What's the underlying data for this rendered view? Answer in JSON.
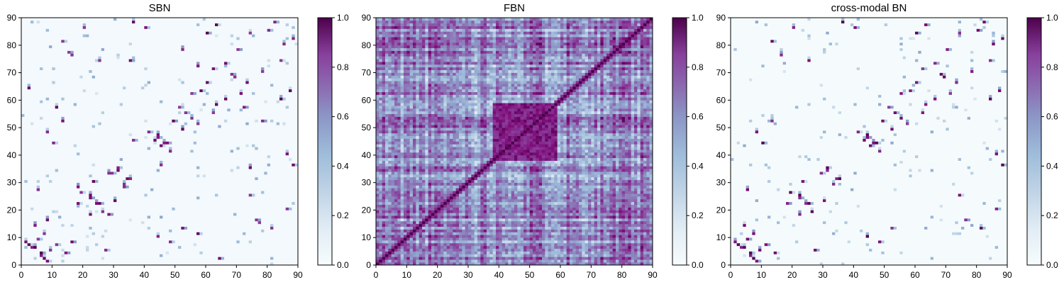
{
  "figure": {
    "panels": [
      {
        "title": "SBN",
        "key": "sbn"
      },
      {
        "title": "FBN",
        "key": "fbn"
      },
      {
        "title": "cross-modal BN",
        "key": "cross"
      }
    ]
  },
  "chart_data": [
    {
      "type": "heatmap",
      "title": "SBN",
      "xlabel": "",
      "ylabel": "",
      "x_ticks": [
        "0",
        "10",
        "20",
        "30",
        "40",
        "50",
        "60",
        "70",
        "80",
        "90"
      ],
      "y_ticks": [
        "0",
        "10",
        "20",
        "30",
        "40",
        "50",
        "60",
        "70",
        "80",
        "90"
      ],
      "xlim": [
        0,
        90
      ],
      "ylim": [
        0,
        90
      ],
      "matrix_size": 90,
      "colormap": "BuPu",
      "colorbar": {
        "min": 0.0,
        "max": 1.0,
        "ticks": [
          "0.0",
          "0.2",
          "0.4",
          "0.6",
          "0.8",
          "1.0"
        ]
      },
      "description_of_pattern": "sparse connectivity, mostly near zero with scattered strong (1.0) links",
      "base_value": 0.02,
      "strong_links": [
        [
          2,
          7
        ],
        [
          3,
          6
        ],
        [
          5,
          9
        ],
        [
          6,
          4
        ],
        [
          8,
          1
        ],
        [
          11,
          7
        ],
        [
          14,
          4
        ],
        [
          16,
          8
        ],
        [
          18,
          22
        ],
        [
          19,
          26
        ],
        [
          22,
          24
        ],
        [
          23,
          30
        ],
        [
          25,
          22
        ],
        [
          28,
          18
        ],
        [
          29,
          33
        ],
        [
          31,
          35
        ],
        [
          34,
          31
        ],
        [
          36,
          45
        ],
        [
          41,
          48
        ],
        [
          44,
          46
        ],
        [
          45,
          43
        ],
        [
          47,
          44
        ],
        [
          49,
          52
        ],
        [
          51,
          57
        ],
        [
          53,
          55
        ],
        [
          55,
          62
        ],
        [
          58,
          63
        ],
        [
          60,
          66
        ],
        [
          62,
          71
        ],
        [
          66,
          73
        ],
        [
          68,
          69
        ],
        [
          70,
          78
        ],
        [
          72,
          57
        ],
        [
          74,
          25
        ],
        [
          76,
          16
        ],
        [
          78,
          52
        ],
        [
          80,
          85
        ],
        [
          82,
          88
        ],
        [
          84,
          74
        ],
        [
          86,
          20
        ],
        [
          88,
          36
        ],
        [
          60,
          84
        ],
        [
          63,
          87
        ],
        [
          40,
          86
        ],
        [
          35,
          74
        ],
        [
          48,
          8
        ],
        [
          52,
          13
        ],
        [
          10,
          44
        ],
        [
          13,
          81
        ],
        [
          64,
          2
        ],
        [
          57,
          11
        ],
        [
          27,
          5
        ],
        [
          33,
          28
        ],
        [
          15,
          77
        ]
      ]
    },
    {
      "type": "heatmap",
      "title": "FBN",
      "xlabel": "",
      "ylabel": "",
      "x_ticks": [
        "0",
        "10",
        "20",
        "30",
        "40",
        "50",
        "60",
        "70",
        "80",
        "90"
      ],
      "y_ticks": [
        "0",
        "10",
        "20",
        "30",
        "40",
        "50",
        "60",
        "70",
        "80",
        "90"
      ],
      "xlim": [
        0,
        90
      ],
      "ylim": [
        0,
        90
      ],
      "matrix_size": 90,
      "colormap": "BuPu",
      "colorbar": {
        "min": 0.0,
        "max": 1.0,
        "ticks": [
          "0.0",
          "0.2",
          "0.4",
          "0.6",
          "0.8",
          "1.0"
        ]
      },
      "description_of_pattern": "dense functional connectivity, strong block near center (indices 35-60), bright diagonal",
      "dense_block": {
        "from": 38,
        "to": 58,
        "value": 0.85
      },
      "diagonal_value": 1.0,
      "background_mean": 0.45
    },
    {
      "type": "heatmap",
      "title": "cross-modal BN",
      "xlabel": "",
      "ylabel": "",
      "x_ticks": [
        "0",
        "10",
        "20",
        "30",
        "40",
        "50",
        "60",
        "70",
        "80",
        "90"
      ],
      "y_ticks": [
        "0",
        "10",
        "20",
        "30",
        "40",
        "50",
        "60",
        "70",
        "80",
        "90"
      ],
      "xlim": [
        0,
        90
      ],
      "ylim": [
        0,
        90
      ],
      "matrix_size": 90,
      "colormap": "BuPu",
      "colorbar": {
        "min": 0.0,
        "max": 1.0,
        "ticks": [
          "0.0",
          "0.2",
          "0.4",
          "0.6",
          "0.8",
          "1.0"
        ]
      },
      "description_of_pattern": "sparse, strong discrete links similar to SBN",
      "base_value": 0.01,
      "strong_links": [
        [
          2,
          7
        ],
        [
          3,
          6
        ],
        [
          5,
          9
        ],
        [
          6,
          4
        ],
        [
          8,
          1
        ],
        [
          11,
          7
        ],
        [
          14,
          4
        ],
        [
          18,
          22
        ],
        [
          19,
          26
        ],
        [
          22,
          24
        ],
        [
          23,
          30
        ],
        [
          25,
          22
        ],
        [
          29,
          33
        ],
        [
          31,
          35
        ],
        [
          34,
          31
        ],
        [
          41,
          48
        ],
        [
          44,
          46
        ],
        [
          45,
          43
        ],
        [
          47,
          44
        ],
        [
          49,
          52
        ],
        [
          51,
          57
        ],
        [
          53,
          55
        ],
        [
          55,
          62
        ],
        [
          58,
          63
        ],
        [
          60,
          66
        ],
        [
          62,
          71
        ],
        [
          66,
          73
        ],
        [
          68,
          69
        ],
        [
          70,
          78
        ],
        [
          74,
          25
        ],
        [
          76,
          16
        ],
        [
          80,
          85
        ],
        [
          82,
          88
        ],
        [
          84,
          74
        ],
        [
          86,
          20
        ],
        [
          88,
          36
        ],
        [
          60,
          84
        ],
        [
          63,
          87
        ],
        [
          40,
          86
        ],
        [
          48,
          8
        ],
        [
          52,
          13
        ],
        [
          10,
          44
        ],
        [
          13,
          81
        ],
        [
          27,
          5
        ]
      ]
    }
  ]
}
